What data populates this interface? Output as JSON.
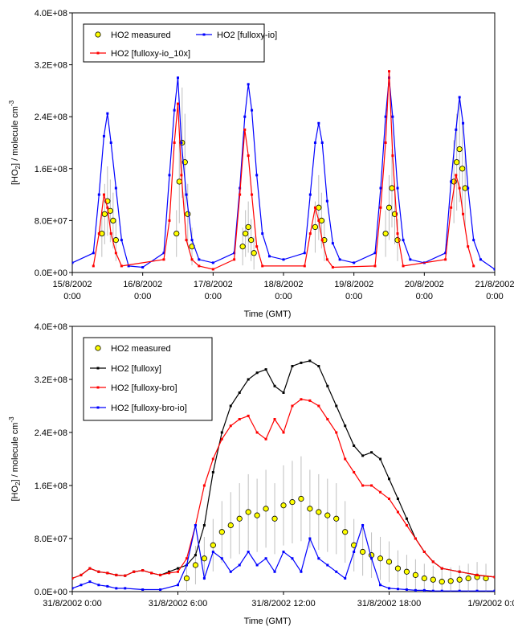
{
  "chart_data": [
    {
      "type": "line",
      "xlabel": "Time (GMT)",
      "ylabel": "[HO2] / molecule cm-3",
      "ylabel_parts": {
        "open": "[HO",
        "sub": "2",
        "mid": "] / molecule cm",
        "sup": "-3"
      },
      "ylim": [
        0,
        400000000
      ],
      "yticks": [
        "0.0E+00",
        "8.0E+07",
        "1.6E+08",
        "2.4E+08",
        "3.2E+08",
        "4.0E+08"
      ],
      "ytick_values": [
        0,
        80000000,
        160000000,
        240000000,
        320000000,
        400000000
      ],
      "xlim_days": [
        0,
        6
      ],
      "xticks": [
        {
          "date": "15/8/2002",
          "time": "0:00"
        },
        {
          "date": "16/8/2002",
          "time": "0:00"
        },
        {
          "date": "17/8/2002",
          "time": "0:00"
        },
        {
          "date": "18/8/2002",
          "time": "0:00"
        },
        {
          "date": "19/8/2002",
          "time": "0:00"
        },
        {
          "date": "20/8/2002",
          "time": "0:00"
        },
        {
          "date": "21/8/2002",
          "time": "0:00"
        }
      ],
      "legend_position": "top-left",
      "series": [
        {
          "name": "HO2 measured",
          "style": "marker",
          "color": "#ffff00",
          "edge": "#000000",
          "error_color": "#bfbfbf",
          "x": [
            0.42,
            0.46,
            0.5,
            0.54,
            0.58,
            0.62,
            1.48,
            1.52,
            1.56,
            1.6,
            1.64,
            1.7,
            2.42,
            2.46,
            2.5,
            2.54,
            2.58,
            3.45,
            3.5,
            3.54,
            3.58,
            4.45,
            4.5,
            4.54,
            4.58,
            4.62,
            5.42,
            5.46,
            5.5,
            5.54,
            5.58
          ],
          "y": [
            60000000,
            90000000,
            110000000,
            95000000,
            80000000,
            50000000,
            60000000,
            140000000,
            200000000,
            170000000,
            90000000,
            40000000,
            40000000,
            60000000,
            70000000,
            50000000,
            30000000,
            70000000,
            100000000,
            80000000,
            50000000,
            60000000,
            100000000,
            130000000,
            90000000,
            50000000,
            140000000,
            170000000,
            190000000,
            160000000,
            130000000
          ]
        },
        {
          "name": "HO2 [fulloxy-io]",
          "style": "line",
          "color": "#0000ff",
          "x": [
            0.0,
            0.3,
            0.38,
            0.45,
            0.5,
            0.55,
            0.62,
            0.7,
            0.8,
            1.0,
            1.3,
            1.38,
            1.45,
            1.5,
            1.55,
            1.62,
            1.7,
            1.8,
            2.0,
            2.3,
            2.38,
            2.45,
            2.5,
            2.55,
            2.62,
            2.7,
            2.8,
            3.0,
            3.3,
            3.38,
            3.45,
            3.5,
            3.55,
            3.62,
            3.7,
            3.8,
            4.0,
            4.3,
            4.38,
            4.45,
            4.5,
            4.55,
            4.62,
            4.7,
            4.8,
            5.0,
            5.3,
            5.38,
            5.45,
            5.5,
            5.55,
            5.62,
            5.7,
            5.8,
            6.0
          ],
          "y": [
            15000000,
            30000000,
            120000000,
            210000000,
            245000000,
            200000000,
            130000000,
            50000000,
            10000000,
            8000000,
            30000000,
            150000000,
            250000000,
            300000000,
            200000000,
            120000000,
            50000000,
            20000000,
            15000000,
            30000000,
            130000000,
            240000000,
            290000000,
            250000000,
            150000000,
            60000000,
            25000000,
            20000000,
            30000000,
            120000000,
            200000000,
            230000000,
            200000000,
            110000000,
            45000000,
            20000000,
            15000000,
            30000000,
            130000000,
            240000000,
            300000000,
            240000000,
            130000000,
            50000000,
            20000000,
            15000000,
            30000000,
            140000000,
            220000000,
            270000000,
            230000000,
            130000000,
            50000000,
            20000000,
            5000000
          ]
        },
        {
          "name": "HO2 [fulloxy-io_10x]",
          "style": "line",
          "color": "#ff0000",
          "x": [
            0.3,
            0.38,
            0.45,
            0.5,
            0.55,
            0.62,
            0.7,
            1.3,
            1.38,
            1.45,
            1.5,
            1.55,
            1.62,
            1.7,
            1.8,
            2.0,
            2.3,
            2.38,
            2.45,
            2.5,
            2.55,
            2.62,
            2.7,
            3.3,
            3.38,
            3.45,
            3.5,
            3.55,
            3.62,
            3.7,
            4.3,
            4.38,
            4.45,
            4.5,
            4.55,
            4.62,
            4.7,
            5.3,
            5.38,
            5.45,
            5.5,
            5.55,
            5.62,
            5.7
          ],
          "y": [
            10000000,
            60000000,
            120000000,
            100000000,
            60000000,
            30000000,
            10000000,
            20000000,
            80000000,
            200000000,
            260000000,
            150000000,
            50000000,
            20000000,
            10000000,
            5000000,
            20000000,
            120000000,
            220000000,
            180000000,
            120000000,
            40000000,
            10000000,
            10000000,
            60000000,
            100000000,
            80000000,
            50000000,
            20000000,
            8000000,
            10000000,
            100000000,
            200000000,
            310000000,
            180000000,
            60000000,
            10000000,
            20000000,
            100000000,
            150000000,
            130000000,
            90000000,
            40000000,
            10000000
          ]
        }
      ]
    },
    {
      "type": "line",
      "xlabel": "Time (GMT)",
      "ylabel": "[HO2] / molecule cm-3",
      "ylabel_parts": {
        "open": "[HO",
        "sub": "2",
        "mid": "] / molecule cm",
        "sup": "-3"
      },
      "ylim": [
        0,
        400000000
      ],
      "yticks": [
        "0.0E+00",
        "8.0E+07",
        "1.6E+08",
        "2.4E+08",
        "3.2E+08",
        "4.0E+08"
      ],
      "ytick_values": [
        0,
        80000000,
        160000000,
        240000000,
        320000000,
        400000000
      ],
      "xlim_hours": [
        0,
        24
      ],
      "xticks": [
        "31/8/2002 0:00",
        "31/8/2002 6:00",
        "31/8/2002 12:00",
        "31/8/2002 18:00",
        "1/9/2002 0:00"
      ],
      "legend_position": "top-left",
      "series": [
        {
          "name": "HO2 measured",
          "style": "marker",
          "color": "#ffff00",
          "edge": "#000000",
          "error_color": "#bfbfbf",
          "x": [
            6.5,
            7.0,
            7.5,
            8.0,
            8.5,
            9.0,
            9.5,
            10.0,
            10.5,
            11.0,
            11.5,
            12.0,
            12.5,
            13.0,
            13.5,
            14.0,
            14.5,
            15.0,
            15.5,
            16.0,
            16.5,
            17.0,
            17.5,
            18.0,
            18.5,
            19.0,
            19.5,
            20.0,
            20.5,
            21.0,
            21.5,
            22.0,
            22.5,
            23.0,
            23.5
          ],
          "y": [
            20000000,
            40000000,
            50000000,
            70000000,
            90000000,
            100000000,
            110000000,
            120000000,
            115000000,
            125000000,
            110000000,
            130000000,
            135000000,
            140000000,
            125000000,
            120000000,
            115000000,
            110000000,
            90000000,
            70000000,
            60000000,
            55000000,
            50000000,
            45000000,
            35000000,
            30000000,
            25000000,
            20000000,
            18000000,
            15000000,
            16000000,
            18000000,
            20000000,
            22000000,
            20000000
          ]
        },
        {
          "name": "HO2 [fulloxy]",
          "style": "line",
          "color": "#000000",
          "x": [
            0.0,
            0.5,
            1.0,
            1.5,
            2.0,
            2.5,
            3.0,
            3.5,
            4.0,
            4.5,
            5.0,
            5.5,
            6.0,
            6.5,
            7.0,
            7.5,
            8.0,
            8.5,
            9.0,
            9.5,
            10.0,
            10.5,
            11.0,
            11.5,
            12.0,
            12.5,
            13.0,
            13.5,
            14.0,
            14.5,
            15.0,
            15.5,
            16.0,
            16.5,
            17.0,
            17.5,
            18.0,
            18.5,
            19.0,
            19.5,
            20.0,
            20.5,
            21.0,
            22.0,
            23.0,
            24.0
          ],
          "y": [
            20000000,
            25000000,
            35000000,
            30000000,
            28000000,
            25000000,
            24000000,
            30000000,
            32000000,
            28000000,
            25000000,
            30000000,
            35000000,
            40000000,
            55000000,
            100000000,
            180000000,
            240000000,
            280000000,
            300000000,
            320000000,
            330000000,
            335000000,
            310000000,
            300000000,
            340000000,
            345000000,
            348000000,
            340000000,
            310000000,
            280000000,
            250000000,
            220000000,
            205000000,
            210000000,
            200000000,
            170000000,
            140000000,
            110000000,
            80000000,
            60000000,
            45000000,
            35000000,
            30000000,
            25000000,
            22000000
          ]
        },
        {
          "name": "HO2 [fulloxy-bro]",
          "style": "line",
          "color": "#ff0000",
          "x": [
            0.0,
            0.5,
            1.0,
            1.5,
            2.0,
            2.5,
            3.0,
            3.5,
            4.0,
            4.5,
            5.0,
            5.5,
            6.0,
            6.5,
            7.0,
            7.5,
            8.0,
            8.5,
            9.0,
            9.5,
            10.0,
            10.5,
            11.0,
            11.5,
            12.0,
            12.5,
            13.0,
            13.5,
            14.0,
            14.5,
            15.0,
            15.5,
            16.0,
            16.5,
            17.0,
            17.5,
            18.0,
            18.5,
            19.0,
            19.5,
            20.0,
            20.5,
            21.0,
            22.0,
            23.0,
            24.0
          ],
          "y": [
            20000000,
            25000000,
            35000000,
            30000000,
            28000000,
            25000000,
            24000000,
            30000000,
            32000000,
            28000000,
            25000000,
            28000000,
            30000000,
            50000000,
            100000000,
            160000000,
            200000000,
            230000000,
            250000000,
            260000000,
            265000000,
            240000000,
            230000000,
            260000000,
            240000000,
            280000000,
            290000000,
            288000000,
            280000000,
            260000000,
            240000000,
            200000000,
            180000000,
            160000000,
            160000000,
            150000000,
            140000000,
            120000000,
            100000000,
            80000000,
            60000000,
            45000000,
            35000000,
            30000000,
            25000000,
            22000000
          ]
        },
        {
          "name": "HO2 [fulloxy-bro-io]",
          "style": "line",
          "color": "#0000ff",
          "x": [
            0.0,
            0.5,
            1.0,
            1.5,
            2.0,
            2.5,
            3.0,
            4.0,
            5.0,
            6.0,
            6.5,
            7.0,
            7.5,
            8.0,
            8.5,
            9.0,
            9.5,
            10.0,
            10.5,
            11.0,
            11.5,
            12.0,
            12.5,
            13.0,
            13.5,
            14.0,
            14.5,
            15.0,
            15.5,
            16.0,
            16.5,
            17.0,
            17.5,
            18.0,
            18.5,
            19.0,
            19.5,
            20.0,
            20.5,
            21.0,
            22.0,
            23.0,
            24.0
          ],
          "y": [
            5000000,
            10000000,
            15000000,
            10000000,
            8000000,
            5000000,
            5000000,
            3000000,
            3000000,
            10000000,
            40000000,
            100000000,
            20000000,
            60000000,
            50000000,
            30000000,
            40000000,
            60000000,
            40000000,
            50000000,
            30000000,
            60000000,
            50000000,
            30000000,
            80000000,
            50000000,
            40000000,
            30000000,
            20000000,
            60000000,
            100000000,
            50000000,
            10000000,
            5000000,
            4000000,
            3000000,
            2000000,
            2000000,
            1000000,
            1000000,
            1000000,
            1000000,
            1000000
          ]
        }
      ]
    }
  ]
}
